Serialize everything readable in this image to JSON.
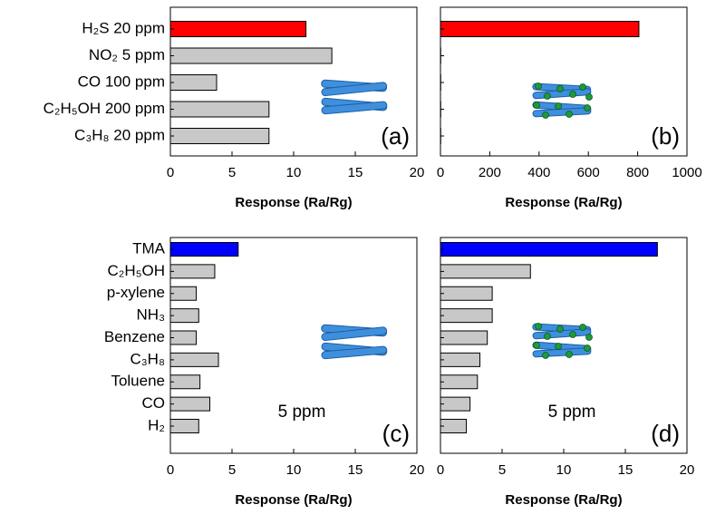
{
  "chart_data": [
    {
      "type": "bar",
      "panel": "(a)",
      "categories": [
        "H₂S  20 ppm",
        "NO₂  5 ppm",
        "CO 100 ppm",
        "C₂H₅OH 200 ppm",
        "C₃H₈  20 ppm"
      ],
      "values": [
        11.0,
        13.1,
        3.75,
        8.0,
        8.0
      ],
      "colors": [
        "#ff0000",
        "#c8c8c8",
        "#c8c8c8",
        "#c8c8c8",
        "#c8c8c8"
      ],
      "xlim": [
        0,
        20
      ],
      "xticks": [
        0,
        5,
        10,
        15,
        20
      ],
      "x_label": "Response (Ra/Rg)"
    },
    {
      "type": "bar",
      "panel": "(b)",
      "categories": [
        null,
        null,
        null,
        null,
        null
      ],
      "values": [
        805,
        1,
        1,
        1,
        1
      ],
      "colors": [
        "#ff0000",
        "#c8c8c8",
        "#c8c8c8",
        "#c8c8c8",
        "#c8c8c8"
      ],
      "xlim": [
        0,
        1000
      ],
      "xticks": [
        0,
        200,
        400,
        600,
        800,
        1000
      ],
      "x_label": "Response (Ra/Rg)"
    },
    {
      "type": "bar",
      "panel": "(c)",
      "annotation": "5 ppm",
      "categories": [
        "TMA",
        "C₂H₅OH",
        "p-xylene",
        "NH₃",
        "Benzene",
        "C₃H₈",
        "Toluene",
        "CO",
        "H₂"
      ],
      "values": [
        5.5,
        3.6,
        2.1,
        2.3,
        2.1,
        3.9,
        2.4,
        3.2,
        2.3
      ],
      "colors": [
        "#0000ff",
        "#c8c8c8",
        "#c8c8c8",
        "#c8c8c8",
        "#c8c8c8",
        "#c8c8c8",
        "#c8c8c8",
        "#c8c8c8",
        "#c8c8c8"
      ],
      "xlim": [
        0,
        20
      ],
      "xticks": [
        0,
        5,
        10,
        15,
        20
      ],
      "x_label": "Response (Ra/Rg)"
    },
    {
      "type": "bar",
      "panel": "(d)",
      "annotation": "5 ppm",
      "categories": [
        null,
        null,
        null,
        null,
        null,
        null,
        null,
        null,
        null
      ],
      "values": [
        17.6,
        7.3,
        4.2,
        4.2,
        3.8,
        3.2,
        3.0,
        2.4,
        2.1
      ],
      "colors": [
        "#0000ff",
        "#c8c8c8",
        "#c8c8c8",
        "#c8c8c8",
        "#c8c8c8",
        "#c8c8c8",
        "#c8c8c8",
        "#c8c8c8",
        "#c8c8c8"
      ],
      "xlim": [
        0,
        20
      ],
      "xticks": [
        0,
        5,
        10,
        15,
        20
      ],
      "x_label": "Response (Ra/Rg)"
    }
  ]
}
